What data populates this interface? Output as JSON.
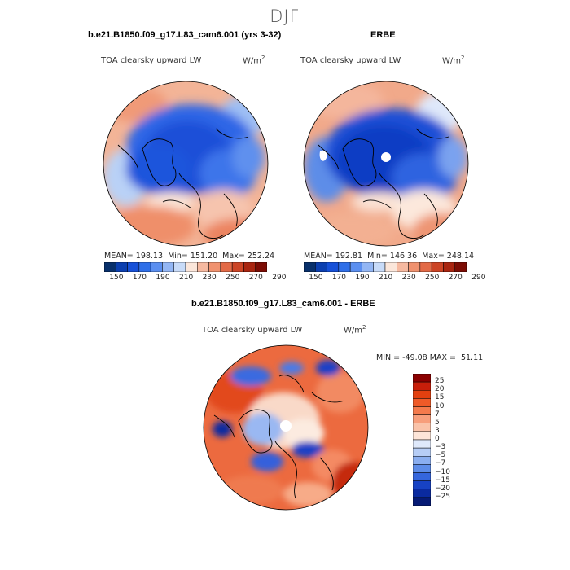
{
  "season": "DJF",
  "top_left": {
    "title": "b.e21.B1850.f09_g17.L83_cam6.001 (yrs 3-32)",
    "variable": "TOA clearsky upward LW",
    "units_base": "W/m",
    "units_exp": "2",
    "stats": "MEAN= 198.13  Min= 151.20  Max= 252.24"
  },
  "top_right": {
    "title": "ERBE",
    "variable": "TOA clearsky upward LW",
    "units_base": "W/m",
    "units_exp": "2",
    "stats": "MEAN= 192.81  Min= 146.36  Max= 248.14"
  },
  "bottom": {
    "title": "b.e21.B1850.f09_g17.L83_cam6.001 - ERBE",
    "variable": "TOA clearsky upward LW",
    "units_base": "W/m",
    "units_exp": "2",
    "stats": "MIN = -49.08 MAX =  51.11"
  },
  "abs_colorbar": {
    "labels": [
      "150",
      "170",
      "190",
      "210",
      "230",
      "250",
      "270",
      "290"
    ],
    "colors": [
      "#08306b",
      "#0b3fb0",
      "#1650d8",
      "#2f6fe8",
      "#5b8ff0",
      "#93b6f4",
      "#c8dbf8",
      "#fbe6da",
      "#f6b9a0",
      "#f0926f",
      "#e36a47",
      "#cc4425",
      "#a92510",
      "#7c0c04"
    ]
  },
  "diff_colorbar": {
    "labels": [
      "25",
      "20",
      "15",
      "10",
      "7",
      "5",
      "3",
      "0",
      "−3",
      "−5",
      "−7",
      "−10",
      "−15",
      "−20",
      "−25"
    ],
    "colors": [
      "#8b0000",
      "#c81e0a",
      "#e2400f",
      "#ef5a28",
      "#f47a4c",
      "#f79e7b",
      "#fac3a9",
      "#fde5d8",
      "#dfe9fb",
      "#b6cdf6",
      "#8aaef0",
      "#5d8ce8",
      "#3566dd",
      "#1742c4",
      "#0a2aa0",
      "#061a75"
    ]
  }
}
